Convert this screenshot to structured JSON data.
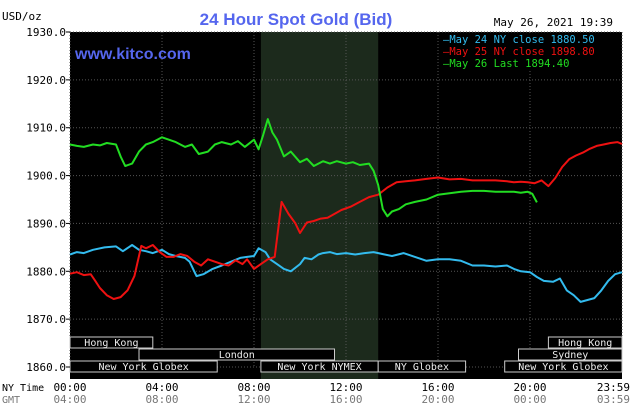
{
  "chart_data": {
    "type": "line",
    "title": "24 Hour Spot Gold (Bid)",
    "watermark": "www.kitco.com",
    "unit_label": "USD/oz",
    "timestamp": "May 26, 2021 19:39",
    "ylim": [
      1860,
      1930
    ],
    "yticks": [
      "1930.0",
      "1920.0",
      "1910.0",
      "1900.0",
      "1890.0",
      "1880.0",
      "1870.0",
      "1860.0"
    ],
    "xlim": [
      0,
      24
    ],
    "time_rows": [
      {
        "label": "NY Time",
        "ticks": [
          "00:00",
          "04:00",
          "08:00",
          "12:00",
          "16:00",
          "20:00",
          "23:59"
        ]
      },
      {
        "label": "GMT",
        "ticks": [
          "04:00",
          "08:00",
          "12:00",
          "16:00",
          "20:00",
          "00:00",
          "03:59"
        ]
      }
    ],
    "legend": [
      {
        "text": "May 24 NY close 1880.50",
        "color": "#33bbee"
      },
      {
        "text": "May 25 NY close 1898.80",
        "color": "#ee1111"
      },
      {
        "text": "May 26 Last 1894.40",
        "color": "#22dd22"
      }
    ],
    "sessions": [
      {
        "name": "Hong Kong",
        "start": 0,
        "end": 3.6,
        "row": 0
      },
      {
        "name": "London",
        "start": 3.0,
        "end": 11.5,
        "row": 1
      },
      {
        "name": "New York Globex",
        "start": 0,
        "end": 6.4,
        "row": 2
      },
      {
        "name": "New York NYMEX",
        "start": 8.3,
        "end": 13.4,
        "row": 2
      },
      {
        "name": "NY Globex",
        "start": 13.4,
        "end": 17.2,
        "row": 2
      },
      {
        "name": "Hong Kong",
        "start": 20.8,
        "end": 24,
        "row": 0
      },
      {
        "name": "Sydney",
        "start": 19.5,
        "end": 24,
        "row": 1
      },
      {
        "name": "New York Globex",
        "start": 18.9,
        "end": 24,
        "row": 2
      }
    ],
    "shaded_range": [
      8.3,
      13.4
    ],
    "series": [
      {
        "name": "May 24",
        "color": "#33bbee",
        "x": [
          0,
          0.3,
          0.6,
          1,
          1.5,
          2,
          2.3,
          2.7,
          3.0,
          3.3,
          3.6,
          4,
          4.3,
          4.6,
          5,
          5.2,
          5.5,
          5.8,
          6.2,
          6.6,
          7,
          7.4,
          7.7,
          8,
          8.2,
          8.5,
          8.7,
          9,
          9.3,
          9.6,
          10,
          10.2,
          10.5,
          10.8,
          11,
          11.3,
          11.6,
          12,
          12.4,
          12.8,
          13.2,
          13.6,
          14,
          14.5,
          15,
          15.5,
          16,
          16.5,
          17,
          17.5,
          18,
          18.5,
          19,
          19.3,
          19.6,
          20,
          20.3,
          20.6,
          21,
          21.3,
          21.6,
          21.9,
          22.2,
          22.5,
          22.8,
          23.1,
          23.4,
          23.7,
          24
        ],
        "y": [
          1883.5,
          1884,
          1883.8,
          1884.5,
          1885,
          1885.2,
          1884.2,
          1885.5,
          1884.5,
          1884.2,
          1883.8,
          1884.5,
          1883.6,
          1883.2,
          1882.8,
          1882,
          1879,
          1879.4,
          1880.5,
          1881.2,
          1882,
          1882.8,
          1883,
          1883.2,
          1884.8,
          1884,
          1882.5,
          1881.5,
          1880.5,
          1880,
          1881.5,
          1882.8,
          1882.5,
          1883.5,
          1883.8,
          1884,
          1883.6,
          1883.8,
          1883.5,
          1883.8,
          1884,
          1883.6,
          1883.2,
          1883.8,
          1883,
          1882.2,
          1882.5,
          1882.5,
          1882.2,
          1881.2,
          1881.2,
          1881,
          1881.2,
          1880.5,
          1880,
          1879.8,
          1878.8,
          1878,
          1877.8,
          1878.5,
          1876,
          1875,
          1873.6,
          1874,
          1874.4,
          1876,
          1878,
          1879.4,
          1879.8
        ]
      },
      {
        "name": "May 25",
        "color": "#ee1111",
        "x": [
          0,
          0.3,
          0.6,
          0.9,
          1.1,
          1.3,
          1.6,
          1.9,
          2.2,
          2.5,
          2.8,
          3.1,
          3.3,
          3.6,
          3.9,
          4.2,
          4.5,
          4.8,
          5.1,
          5.4,
          5.7,
          6,
          6.3,
          6.6,
          6.9,
          7.2,
          7.5,
          7.7,
          8,
          8.3,
          8.6,
          8.9,
          9.2,
          9.5,
          9.8,
          10,
          10.3,
          10.6,
          10.9,
          11.2,
          11.5,
          11.8,
          12.2,
          12.6,
          13,
          13.4,
          13.8,
          14.2,
          14.6,
          15,
          15.5,
          16,
          16.5,
          17,
          17.5,
          18,
          18.5,
          19,
          19.3,
          19.6,
          19.9,
          20.2,
          20.5,
          20.8,
          21.1,
          21.4,
          21.7,
          22,
          22.3,
          22.6,
          22.9,
          23.2,
          23.5,
          23.8,
          24
        ],
        "y": [
          1879.5,
          1879.8,
          1879.2,
          1879.4,
          1878,
          1876.5,
          1875,
          1874.2,
          1874.6,
          1876,
          1879,
          1885.3,
          1884.8,
          1885.5,
          1884,
          1883,
          1883,
          1883.6,
          1883.2,
          1882,
          1881.2,
          1882.5,
          1882,
          1881.5,
          1881.2,
          1882.3,
          1881.5,
          1882.5,
          1880.5,
          1881.5,
          1882.5,
          1883,
          1894.5,
          1892,
          1890,
          1888,
          1890.2,
          1890.5,
          1891,
          1891.2,
          1892,
          1892.8,
          1893.5,
          1894.5,
          1895.5,
          1896,
          1897.5,
          1898.6,
          1898.8,
          1899,
          1899.3,
          1899.6,
          1899.2,
          1899.3,
          1899,
          1899,
          1899,
          1898.8,
          1898.6,
          1898.7,
          1898.6,
          1898.4,
          1899,
          1897.8,
          1899.5,
          1901.8,
          1903.4,
          1904.2,
          1904.8,
          1905.6,
          1906.2,
          1906.5,
          1906.8,
          1907,
          1906.6
        ]
      },
      {
        "name": "May 26",
        "color": "#22dd22",
        "x": [
          0,
          0.3,
          0.6,
          1,
          1.3,
          1.6,
          2,
          2.2,
          2.4,
          2.7,
          3,
          3.3,
          3.6,
          4,
          4.3,
          4.6,
          5,
          5.3,
          5.6,
          6,
          6.3,
          6.6,
          7,
          7.3,
          7.6,
          8,
          8.2,
          8.4,
          8.6,
          8.8,
          9,
          9.3,
          9.6,
          10,
          10.3,
          10.6,
          11,
          11.3,
          11.6,
          12,
          12.3,
          12.6,
          13,
          13.2,
          13.4,
          13.6,
          13.8,
          14,
          14.3,
          14.6,
          15,
          15.5,
          16,
          16.5,
          17,
          17.5,
          18,
          18.5,
          19,
          19.3,
          19.6,
          19.9,
          20.1,
          20.3
        ],
        "y": [
          1906.5,
          1906.2,
          1906,
          1906.5,
          1906.3,
          1906.8,
          1906.5,
          1904,
          1902,
          1902.5,
          1905,
          1906.5,
          1907,
          1908,
          1907.5,
          1907,
          1906,
          1906.5,
          1904.5,
          1905,
          1906.5,
          1907,
          1906.5,
          1907.2,
          1906,
          1907.5,
          1905.5,
          1908.5,
          1911.8,
          1909,
          1907.5,
          1904,
          1905,
          1902.8,
          1903.5,
          1902,
          1903,
          1902.5,
          1903,
          1902.5,
          1902.8,
          1902.2,
          1902.5,
          1901,
          1898,
          1893,
          1891.5,
          1892.5,
          1893,
          1894,
          1894.5,
          1895,
          1896,
          1896.3,
          1896.6,
          1896.8,
          1896.8,
          1896.6,
          1896.6,
          1896.6,
          1896.4,
          1896.6,
          1896.2,
          1894.4
        ]
      }
    ]
  }
}
